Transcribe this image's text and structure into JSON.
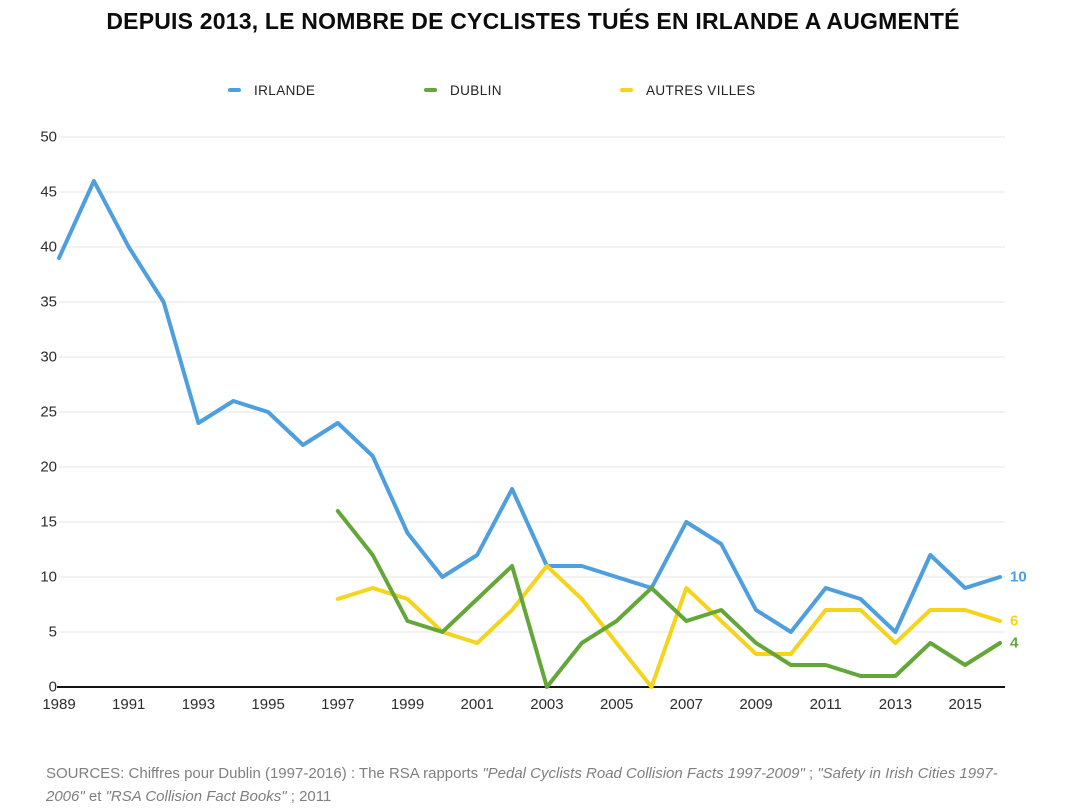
{
  "page": {
    "title": "DEPUIS 2013, LE NOMBRE DE CYCLISTES TUÉS EN IRLANDE A AUGMENTÉ"
  },
  "chart_data": {
    "type": "line",
    "title": "DEPUIS 2013, LE NOMBRE DE CYCLISTES TUÉS EN IRLANDE A AUGMENTÉ",
    "xlabel": "",
    "ylabel": "",
    "ylim": [
      0,
      50
    ],
    "y_ticks": [
      0,
      5,
      10,
      15,
      20,
      25,
      30,
      35,
      40,
      45,
      50
    ],
    "x_tick_labels": [
      "1989",
      "1991",
      "1993",
      "1995",
      "1997",
      "1999",
      "2001",
      "2003",
      "2005",
      "2007",
      "2009",
      "2011",
      "2013",
      "2015"
    ],
    "x_tick_years": [
      1989,
      1991,
      1993,
      1995,
      1997,
      1999,
      2001,
      2003,
      2005,
      2007,
      2009,
      2011,
      2013,
      2015
    ],
    "grid": true,
    "legend_position": "top",
    "series": [
      {
        "name": "IRLANDE",
        "color": "#4d9fe0",
        "start_year": 1989,
        "years": [
          1989,
          1990,
          1991,
          1992,
          1993,
          1994,
          1995,
          1996,
          1997,
          1998,
          1999,
          2000,
          2001,
          2002,
          2003,
          2004,
          2005,
          2006,
          2007,
          2008,
          2009,
          2010,
          2011,
          2012,
          2013,
          2014,
          2015,
          2016
        ],
        "values": [
          39,
          46,
          40,
          35,
          24,
          26,
          25,
          22,
          24,
          21,
          14,
          10,
          12,
          18,
          11,
          11,
          10,
          9,
          15,
          13,
          7,
          5,
          9,
          8,
          5,
          12,
          9,
          10
        ],
        "end_label": "10"
      },
      {
        "name": "AUTRES VILLES",
        "color": "#f6d31c",
        "start_year": 1997,
        "years": [
          1997,
          1998,
          1999,
          2000,
          2001,
          2002,
          2003,
          2004,
          2005,
          2006,
          2007,
          2008,
          2009,
          2010,
          2011,
          2012,
          2013,
          2014,
          2015,
          2016
        ],
        "values": [
          8,
          9,
          8,
          5,
          4,
          7,
          11,
          8,
          4,
          0,
          9,
          6,
          3,
          3,
          7,
          7,
          4,
          7,
          7,
          6
        ],
        "end_label": "6"
      },
      {
        "name": "DUBLIN",
        "color": "#63a738",
        "start_year": 1997,
        "years": [
          1997,
          1998,
          1999,
          2000,
          2001,
          2002,
          2003,
          2004,
          2005,
          2006,
          2007,
          2008,
          2009,
          2010,
          2011,
          2012,
          2013,
          2014,
          2015,
          2016
        ],
        "values": [
          16,
          12,
          6,
          5,
          8,
          11,
          0,
          4,
          6,
          9,
          6,
          7,
          4,
          2,
          2,
          1,
          1,
          4,
          2,
          4
        ],
        "end_label": "4"
      }
    ]
  },
  "legend": {
    "items": [
      {
        "label": "IRLANDE",
        "color": "#4d9fe0",
        "x": 228
      },
      {
        "label": "DUBLIN",
        "color": "#63a738",
        "x": 424
      },
      {
        "label": "AUTRES VILLES",
        "color": "#f6d31c",
        "x": 620
      }
    ]
  },
  "source": {
    "segments": [
      {
        "text": "SOURCES: Chiffres pour Dublin (1997-2016) : The RSA rapports ",
        "italic": false
      },
      {
        "text": "\"Pedal Cyclists Road Collision Facts 1997-2009\"",
        "italic": true
      },
      {
        "text": "  ; ",
        "italic": false
      },
      {
        "text": "\"Safety in Irish Cities 1997-2006\"",
        "italic": true
      },
      {
        "text": " et ",
        "italic": false
      },
      {
        "text": "\"RSA Collision Fact Books\"",
        "italic": true
      },
      {
        "text": " ; 2011",
        "italic": false
      }
    ]
  },
  "colors": {
    "grid": "#e6e6e6",
    "axis": "#141414",
    "title": "#0c0c0c",
    "tick_text": "#2d2d2d",
    "source_text": "#7f7f7f"
  }
}
